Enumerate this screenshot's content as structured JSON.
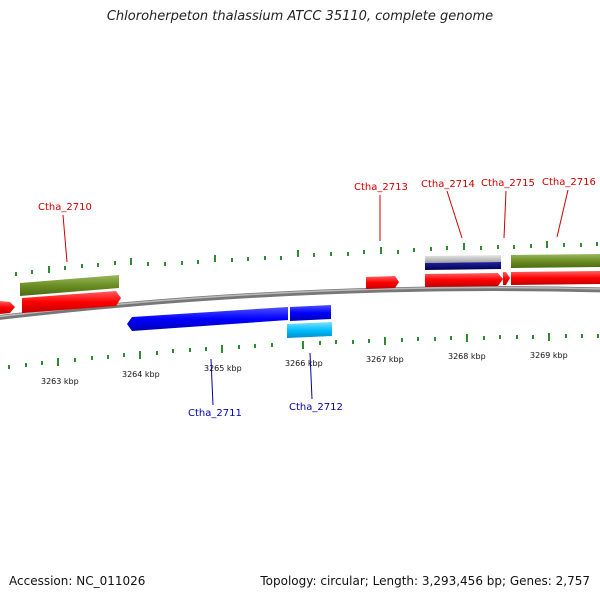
{
  "title": "Chloroherpeton thalassium ATCC 35110, complete genome",
  "footer": {
    "accession": "Accession: NC_011026",
    "summary": "Topology: circular; Length: 3,293,456 bp; Genes: 2,757"
  },
  "axis": {
    "ticks": [
      "3263 kbp",
      "3264 kbp",
      "3265 kbp",
      "3266 kbp",
      "3267 kbp",
      "3268 kbp",
      "3269 kbp"
    ]
  },
  "genes": {
    "top": [
      "Ctha_2710",
      "Ctha_2713",
      "Ctha_2714",
      "Ctha_2715",
      "Ctha_2716"
    ],
    "bottom": [
      "Ctha_2711",
      "Ctha_2712"
    ]
  },
  "colors": {
    "forward_cds": "#ff0000",
    "reverse_cds": "#0000ff",
    "rna_feature": "#00bfff",
    "dark_feature": "#00007f",
    "gray_feature": "#bbbbbb",
    "olive_feature": "#6b8e23",
    "label_forward": "#cc0000",
    "label_reverse": "#0000aa",
    "tick_green": "#2e8b2e",
    "backbone": "#888888"
  }
}
